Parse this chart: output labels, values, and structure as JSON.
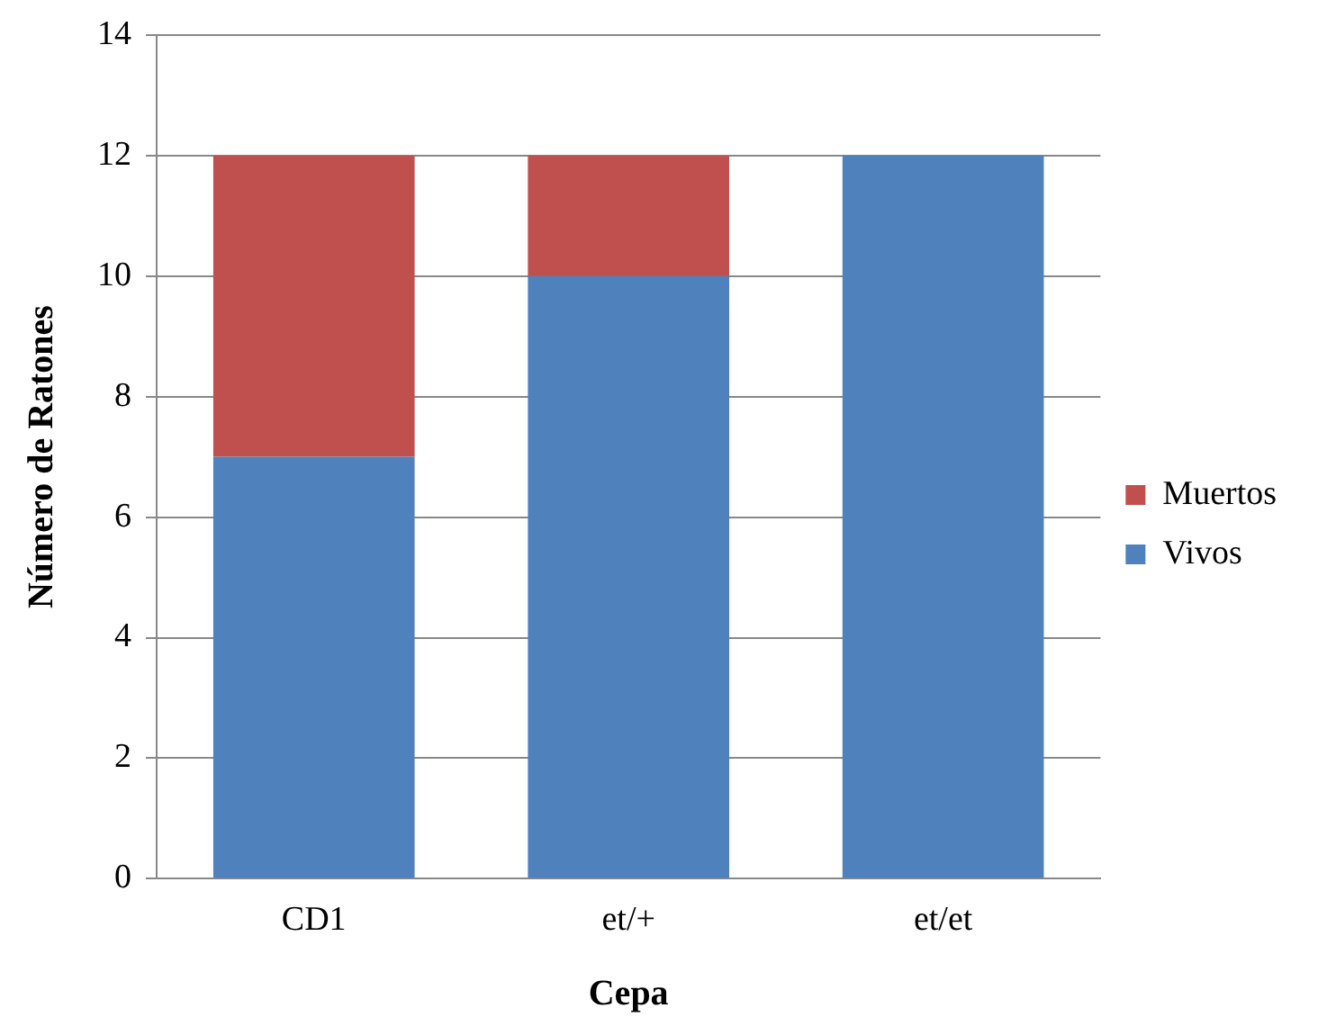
{
  "chart_data": {
    "type": "bar",
    "stacked": true,
    "xlabel": "Cepa",
    "ylabel": "Número de Ratones",
    "categories": [
      "CD1",
      "et/+",
      "et/et"
    ],
    "series": [
      {
        "name": "Vivos",
        "color": "#4f81bd",
        "values": [
          7,
          10,
          12
        ]
      },
      {
        "name": "Muertos",
        "color": "#c0504d",
        "values": [
          5,
          2,
          0
        ]
      }
    ],
    "ylim": [
      0,
      14
    ],
    "yticks": [
      0,
      2,
      4,
      6,
      8,
      10,
      12,
      14
    ],
    "grid": "y",
    "legend": "right"
  }
}
